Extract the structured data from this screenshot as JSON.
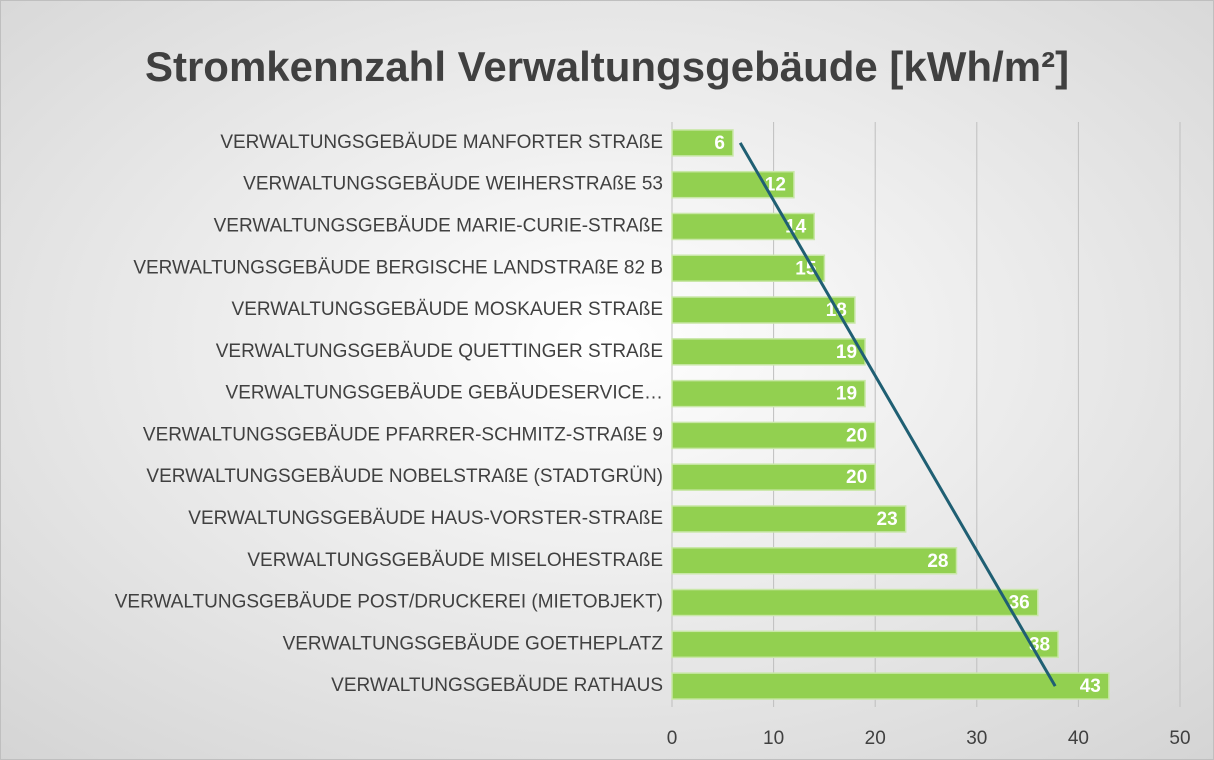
{
  "chart_data": {
    "type": "bar",
    "orientation": "horizontal",
    "title": "Stromkennzahl Verwaltungsgebäude [kWh/m²]",
    "categories": [
      "VERWALTUNGSGEBÄUDE MANFORTER STRAßE",
      "VERWALTUNGSGEBÄUDE WEIHERSTRAßE 53",
      "VERWALTUNGSGEBÄUDE MARIE-CURIE-STRAßE",
      "VERWALTUNGSGEBÄUDE BERGISCHE LANDSTRAßE 82 B",
      "VERWALTUNGSGEBÄUDE MOSKAUER STRAßE",
      "VERWALTUNGSGEBÄUDE QUETTINGER STRAßE",
      "VERWALTUNGSGEBÄUDE GEBÄUDESERVICE…",
      "VERWALTUNGSGEBÄUDE PFARRER-SCHMITZ-STRAßE 9",
      "VERWALTUNGSGEBÄUDE NOBELSTRAßE (STADTGRÜN)",
      "VERWALTUNGSGEBÄUDE HAUS-VORSTER-STRAßE",
      "VERWALTUNGSGEBÄUDE MISELOHESTRAßE",
      "VERWALTUNGSGEBÄUDE POST/DRUCKEREI (MIETOBJEKT)",
      "VERWALTUNGSGEBÄUDE GOETHEPLATZ",
      "VERWALTUNGSGEBÄUDE RATHAUS"
    ],
    "values": [
      6,
      12,
      14,
      15,
      18,
      19,
      19,
      20,
      20,
      23,
      28,
      36,
      38,
      43
    ],
    "color": "#92d050",
    "xlim": [
      0,
      50
    ],
    "xticks": [
      0,
      10,
      20,
      30,
      40,
      50
    ],
    "grid": true,
    "trendline": "linear",
    "trendline_color": "#1f5f73"
  }
}
